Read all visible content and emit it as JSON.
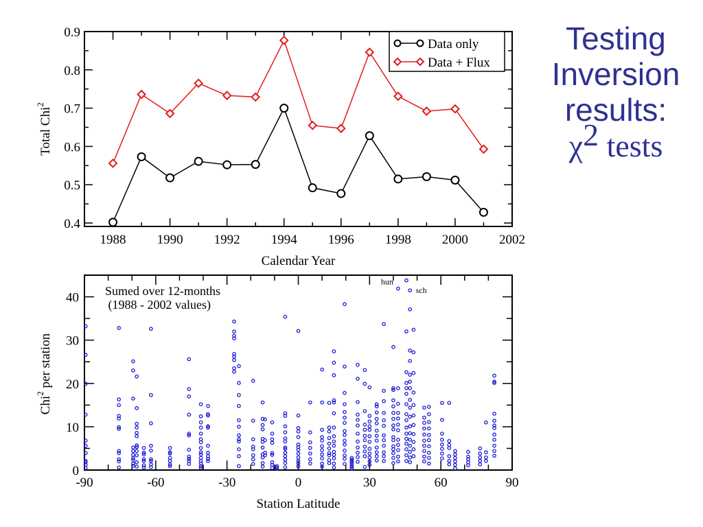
{
  "slide": {
    "title_lines": [
      "Testing",
      "Inversion",
      "results:"
    ],
    "title_symbol": "χ",
    "title_superscript": "2",
    "title_suffix": " tests",
    "title_color": "#2e3192"
  },
  "chart_data": [
    {
      "type": "line",
      "title": "",
      "xlabel": "Calendar Year",
      "ylabel": "Total Chi",
      "ylabel_superscript": "2",
      "xlim": [
        1987,
        2002
      ],
      "ylim": [
        0.4,
        0.9
      ],
      "x_ticks": [
        1988,
        1990,
        1992,
        1994,
        1996,
        1998,
        2000,
        2002
      ],
      "y_ticks": [
        0.4,
        0.5,
        0.6,
        0.7,
        0.8,
        0.9
      ],
      "y_tick_labels": [
        "0.4",
        "0.5",
        "0.6",
        "0.7",
        "0.8",
        "0.9"
      ],
      "grid": false,
      "legend_position": "top-right",
      "x": [
        1988,
        1989,
        1990,
        1991,
        1992,
        1993,
        1994,
        1995,
        1996,
        1997,
        1998,
        1999,
        2000,
        2001
      ],
      "series": [
        {
          "name": "Data only",
          "color": "#000000",
          "marker": "circle",
          "values": [
            0.402,
            0.573,
            0.518,
            0.561,
            0.552,
            0.553,
            0.7,
            0.492,
            0.477,
            0.628,
            0.515,
            0.521,
            0.512,
            0.428
          ]
        },
        {
          "name": "Data + Flux",
          "color": "#e41a1c",
          "marker": "diamond",
          "values": [
            0.556,
            0.736,
            0.686,
            0.765,
            0.733,
            0.729,
            0.877,
            0.655,
            0.647,
            0.846,
            0.731,
            0.692,
            0.698,
            0.593
          ]
        }
      ]
    },
    {
      "type": "scatter",
      "title": "",
      "xlabel": "Station Latitude",
      "ylabel": "Chi",
      "ylabel_superscript": "2",
      "ylabel_suffix": " per station",
      "xlim": [
        -90,
        90
      ],
      "ylim": [
        0,
        45
      ],
      "x_ticks": [
        -90,
        -60,
        -30,
        0,
        30,
        60,
        90
      ],
      "y_ticks": [
        0,
        10,
        20,
        30,
        40
      ],
      "grid": false,
      "marker_color": "#1a1ad6",
      "annotation_lines": [
        "Sumed over 12-months",
        " (1988 - 2002 values)"
      ],
      "point_labels": [
        {
          "text": "hun",
          "x": 42,
          "y": 43.5
        },
        {
          "text": "sch",
          "x": 48,
          "y": 41.5
        }
      ],
      "columns": [
        {
          "lat": -89.5,
          "values": [
            33.2,
            26.6,
            19.9,
            12.8,
            6.8,
            5.6,
            3.9,
            2.1,
            1.8,
            1.2,
            0.5
          ]
        },
        {
          "lat": -75.5,
          "values": [
            32.8,
            16.3,
            15.0,
            12.5,
            11.9,
            9.9,
            9.5,
            4.4,
            3.9,
            2.5,
            2.0,
            0.6
          ]
        },
        {
          "lat": -69.5,
          "values": [
            25.1,
            23.0,
            16.5,
            5.2,
            4.4,
            3.5,
            2.8,
            2.4,
            1.5,
            1.0
          ]
        },
        {
          "lat": -68.0,
          "values": [
            21.6,
            14.3,
            10.7,
            9.8,
            8.6,
            7.8,
            5.7,
            5.3,
            4.4,
            3.4,
            1.8,
            0.8
          ]
        },
        {
          "lat": -65.0,
          "values": [
            5.1,
            4.0,
            3.6,
            2.5,
            2.1,
            1.1,
            0.6
          ]
        },
        {
          "lat": -62.0,
          "values": [
            32.6,
            17.3,
            10.8,
            5.6,
            4.5,
            2.5,
            2.1,
            1.3,
            0.7
          ]
        },
        {
          "lat": -54.0,
          "values": [
            5.1,
            4.1,
            3.8,
            2.8,
            2.1,
            1.3,
            0.9
          ]
        },
        {
          "lat": -46.0,
          "values": [
            25.6,
            18.7,
            17.0,
            12.8,
            8.4,
            8.0,
            4.7,
            3.1,
            2.6,
            2.1,
            1.4
          ]
        },
        {
          "lat": -41.0,
          "values": [
            15.2,
            12.4,
            11.0,
            9.8,
            8.4,
            7.1,
            6.4,
            5.1,
            4.1,
            3.6,
            2.8,
            2.1,
            1.5,
            0.9,
            0.5
          ]
        },
        {
          "lat": -38.0,
          "values": [
            14.8,
            12.9,
            12.6,
            10.1,
            9.8,
            5.6,
            4.0,
            3.2,
            2.6,
            2.1
          ]
        },
        {
          "lat": -27.0,
          "values": [
            34.3,
            32.0,
            31.0,
            30.4,
            26.8,
            26.2,
            25.4,
            23.5,
            22.7
          ]
        },
        {
          "lat": -25.0,
          "values": [
            24.0,
            20.1,
            17.3,
            14.8,
            11.5,
            10.0,
            8.0,
            7.1,
            6.6,
            4.8,
            3.2,
            0.9
          ]
        },
        {
          "lat": -19.0,
          "values": [
            20.6,
            11.4,
            7.1,
            5.4,
            4.8,
            3.4,
            2.5,
            1.4
          ]
        },
        {
          "lat": -15.0,
          "values": [
            15.6,
            11.8,
            10.4,
            9.4,
            7.2,
            6.5,
            5.2,
            3.6,
            2.9,
            1.6,
            0.8
          ]
        },
        {
          "lat": -14.0,
          "values": [
            11.7,
            6.9,
            4.0,
            3.4
          ]
        },
        {
          "lat": -11.0,
          "values": [
            11.0,
            8.4,
            7.1,
            6.3,
            3.9,
            3.5,
            1.8,
            1.2,
            0.5
          ]
        },
        {
          "lat": -9.0,
          "values": [
            0.9,
            0.6,
            0.3
          ]
        },
        {
          "lat": -5.5,
          "values": [
            35.4,
            13.1,
            12.5,
            10.1,
            8.7,
            7.3,
            6.6,
            5.2,
            4.9,
            4.0,
            3.2,
            2.4,
            1.6,
            0.6
          ]
        },
        {
          "lat": 0.0,
          "values": [
            32.1,
            12.6,
            9.7,
            8.9,
            7.6,
            5.9,
            5.3,
            4.7,
            3.8,
            2.9,
            2.1,
            1.5,
            0.8
          ]
        },
        {
          "lat": 5.0,
          "values": [
            15.6,
            8.7,
            6.4,
            5.1,
            3.8,
            2.5,
            1.5
          ]
        },
        {
          "lat": 10.0,
          "values": [
            23.2,
            15.6,
            9.3,
            7.6,
            6.8,
            5.5,
            4.6,
            3.6,
            2.7,
            1.5,
            0.8
          ]
        },
        {
          "lat": 13.0,
          "values": [
            15.5,
            9.8,
            8.9,
            7.4,
            6.1,
            5.0,
            3.9,
            3.4,
            2.3,
            1.6
          ]
        },
        {
          "lat": 15.0,
          "values": [
            27.4,
            24.8,
            21.9,
            16.1,
            15.6,
            13.1,
            9.8,
            7.8,
            6.6,
            5.6,
            4.2,
            3.5,
            2.7,
            1.5,
            0.6
          ]
        },
        {
          "lat": 19.5,
          "values": [
            38.3,
            23.9,
            17.8,
            15.2,
            13.4,
            12.1,
            10.9,
            9.0,
            8.1,
            6.8,
            5.9,
            4.5,
            3.4,
            2.6,
            1.4
          ]
        },
        {
          "lat": 22.5,
          "values": [
            2.8,
            2.4,
            2.0,
            1.6,
            1.1,
            0.7,
            0.3
          ]
        },
        {
          "lat": 25.0,
          "values": [
            24.3,
            21.1,
            15.7,
            12.8,
            11.6,
            10.3,
            8.4,
            6.6,
            5.2,
            4.0,
            3.0,
            1.9
          ]
        },
        {
          "lat": 28.0,
          "values": [
            23.1,
            19.9,
            13.6,
            10.5,
            9.3,
            7.9,
            6.9,
            5.4,
            4.3,
            3.2,
            0.7
          ]
        },
        {
          "lat": 30.0,
          "values": [
            19.1,
            12.5,
            11.2,
            10.1,
            9.3,
            7.8,
            6.5,
            4.9,
            3.8,
            2.9,
            2.0,
            1.2
          ]
        },
        {
          "lat": 33.0,
          "values": [
            15.2,
            14.7,
            13.3,
            11.8,
            10.8,
            9.1,
            7.9,
            6.8,
            5.2,
            4.1,
            3.2,
            2.2
          ]
        },
        {
          "lat": 36.0,
          "values": [
            33.7,
            18.3,
            15.9,
            13.2,
            11.5,
            10.2,
            8.0,
            6.9,
            5.6,
            4.1,
            3.2,
            2.1
          ]
        },
        {
          "lat": 40.0,
          "values": [
            28.4,
            18.9,
            18.5,
            16.1,
            14.7,
            13.2,
            11.8,
            10.3,
            9.4,
            7.6,
            6.9,
            5.5,
            4.8,
            3.9,
            2.8,
            1.6
          ]
        },
        {
          "lat": 42.0,
          "values": [
            41.9,
            18.9,
            15.3,
            13.2,
            11.9,
            10.5,
            9.2,
            7.0,
            5.8,
            4.6,
            3.1,
            2.0
          ]
        },
        {
          "lat": 45.5,
          "values": [
            43.8,
            32.0,
            22.6,
            20.1,
            18.9,
            17.6,
            15.2,
            12.9,
            11.5,
            9.8,
            8.4,
            7.2,
            6.1,
            4.8,
            3.4,
            2.1
          ]
        },
        {
          "lat": 47.0,
          "values": [
            41.5,
            37.1,
            27.6,
            25.2,
            22.0,
            20.4,
            18.9,
            16.2,
            14.4,
            12.3,
            10.1,
            8.5,
            7.0,
            5.6,
            4.2,
            2.9,
            1.8
          ]
        },
        {
          "lat": 48.5,
          "values": [
            32.4,
            27.2,
            22.4,
            17.9,
            15.0,
            12.6,
            10.4,
            8.3,
            6.5,
            4.8,
            3.2
          ]
        },
        {
          "lat": 53.0,
          "values": [
            14.4,
            12.1,
            10.9,
            9.6,
            8.2,
            6.8,
            5.6,
            4.4,
            3.1,
            2.0
          ]
        },
        {
          "lat": 55.0,
          "values": [
            14.6,
            12.9,
            11.1,
            9.6,
            8.1,
            6.9,
            5.5,
            4.0,
            2.8,
            1.5
          ]
        },
        {
          "lat": 60.5,
          "values": [
            15.5,
            11.6,
            8.4,
            7.0,
            5.9,
            4.9,
            3.8,
            2.7
          ]
        },
        {
          "lat": 63.5,
          "values": [
            15.5,
            6.7,
            5.8,
            5.1,
            3.2,
            2.1,
            1.3
          ]
        },
        {
          "lat": 66.0,
          "values": [
            4.4,
            3.6,
            2.8,
            2.0,
            1.2,
            0.4
          ]
        },
        {
          "lat": 71.5,
          "values": [
            4.2,
            3.1,
            2.5,
            1.8,
            1.1
          ]
        },
        {
          "lat": 76.5,
          "values": [
            5.0,
            3.8,
            2.9,
            2.1,
            1.3
          ]
        },
        {
          "lat": 79.0,
          "values": [
            11.0,
            4.1,
            2.9,
            2.1
          ]
        },
        {
          "lat": 82.5,
          "values": [
            21.8,
            20.4,
            20.1,
            13.0,
            11.4,
            10.3,
            9.7,
            8.2,
            7.0,
            5.6,
            4.4,
            3.3
          ]
        }
      ]
    }
  ]
}
